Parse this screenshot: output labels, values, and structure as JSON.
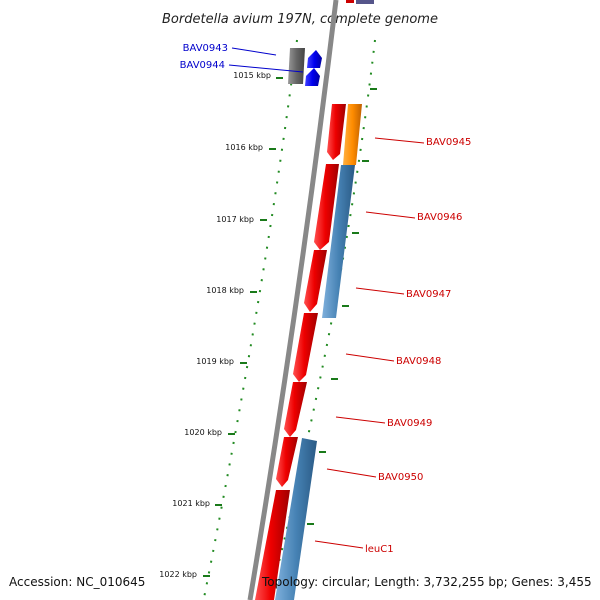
{
  "title": "Bordetella avium 197N, complete genome",
  "accession": "Accession: NC_010645",
  "topology": "Topology: circular; Length: 3,732,255 bp; Genes: 3,455",
  "ticks": [
    "1015 kbp",
    "1016 kbp",
    "1017 kbp",
    "1018 kbp",
    "1019 kbp",
    "1020 kbp",
    "1021 kbp",
    "1022 kbp"
  ],
  "genes": [
    {
      "name": "BAV0943",
      "color": "#0000cc"
    },
    {
      "name": "BAV0944",
      "color": "#0000cc"
    },
    {
      "name": "BAV0945",
      "color": "#cc0000"
    },
    {
      "name": "BAV0946",
      "color": "#cc0000"
    },
    {
      "name": "BAV0947",
      "color": "#cc0000"
    },
    {
      "name": "BAV0948",
      "color": "#cc0000"
    },
    {
      "name": "BAV0949",
      "color": "#cc0000"
    },
    {
      "name": "BAV0950",
      "color": "#cc0000"
    },
    {
      "name": "leuC1",
      "color": "#cc0000"
    }
  ],
  "colors": {
    "backbone": "#888888",
    "forward_cds": "#ee0000",
    "reverse_cds": "#4682b4",
    "pseudogene": "#666666",
    "other_feature": "#1a1aff",
    "orange_feature": "#ff8c00",
    "gc_dots": "#228b22"
  }
}
